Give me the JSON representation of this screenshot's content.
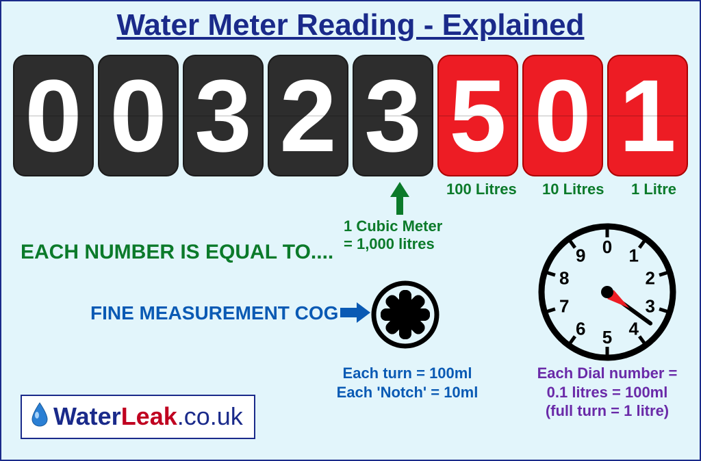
{
  "title": "Water Meter Reading - Explained",
  "digits": [
    {
      "value": "0",
      "style": "black"
    },
    {
      "value": "0",
      "style": "black"
    },
    {
      "value": "3",
      "style": "black"
    },
    {
      "value": "2",
      "style": "black"
    },
    {
      "value": "3",
      "style": "black"
    },
    {
      "value": "5",
      "style": "red"
    },
    {
      "value": "0",
      "style": "red"
    },
    {
      "value": "1",
      "style": "red"
    }
  ],
  "sublabels": {
    "hundred_litres": "100 Litres",
    "ten_litres": "10 Litres",
    "one_litre": "1 Litre"
  },
  "each_number": "EACH NUMBER IS EQUAL TO....",
  "cubic_meter_line1": "1 Cubic Meter",
  "cubic_meter_line2": "= 1,000 litres",
  "fine_cog_label": "FINE MEASUREMENT COG",
  "cog_caption_line1": "Each turn = 100ml",
  "cog_caption_line2": "Each 'Notch' = 10ml",
  "dial": {
    "numbers": [
      "0",
      "1",
      "2",
      "3",
      "4",
      "5",
      "6",
      "7",
      "8",
      "9"
    ],
    "pointer_angle_deg": 126,
    "caption_line1": "Each Dial number =",
    "caption_line2": "0.1 litres = 100ml",
    "caption_line3": "(full turn = 1 litre)"
  },
  "logo": {
    "water": "Water",
    "leak": "Leak",
    "domain": ".co.uk"
  },
  "colors": {
    "background": "#e2f5fb",
    "border": "#1a2a8a",
    "title": "#1a2a8a",
    "green": "#0b7a2a",
    "blue": "#0a5ab4",
    "purple": "#6a2aa8",
    "digit_black": "#2d2d2d",
    "digit_red": "#ed1c24",
    "dial_pointer": "#ed1c24"
  }
}
